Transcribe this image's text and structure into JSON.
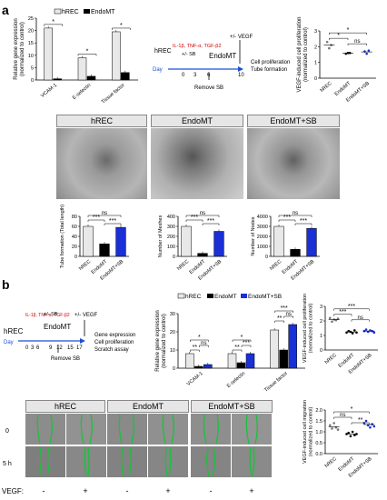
{
  "panel_a": {
    "label": "a",
    "legend": [
      "hREC",
      "EndoMT"
    ],
    "timeline": {
      "cytokines": "IL-1β, TNF-α, TGF-β2",
      "start": "hREC",
      "sb": "+/- SB",
      "endpoint": "EndoMT",
      "vegf": "+/- VEGF",
      "day_label": "Day",
      "days": [
        "0",
        "3",
        "6",
        "10"
      ],
      "remove": "Remove SB",
      "outcomes": [
        "Cell proliferation",
        "Tube formation"
      ]
    },
    "photo_headers": [
      "hREC",
      "EndoMT",
      "EndoMT+SB"
    ]
  },
  "panel_b": {
    "label": "b",
    "legend": [
      "hREC",
      "EndoMT",
      "EndoMT+SB"
    ],
    "timeline": {
      "cytokines": "IL-1β, TNF-α, TGF-β2",
      "start": "hREC",
      "sb": "+/- SB",
      "endpoint": "EndoMT",
      "vegf": "+/- VEGF",
      "day_label": "Day",
      "days": [
        "0",
        "3",
        "6",
        "9",
        "12",
        "15",
        "17"
      ],
      "remove": "Remove SB",
      "outcomes": [
        "Gene expression",
        "Cell proliferation",
        "Scratch assay"
      ]
    },
    "photo_headers": [
      "hREC",
      "EndoMT",
      "EndoMT+SB"
    ],
    "row_labels": [
      "0",
      "5 h"
    ],
    "vegf_row": {
      "label": "VEGF:",
      "marks": [
        "-",
        "+",
        "-",
        "+",
        "-",
        "+"
      ]
    }
  },
  "chart_data": [
    {
      "type": "bar",
      "id": "a_gene",
      "ylabel": "Relative gene expression (normalized to control)",
      "categories": [
        "VCAM-1",
        "E-selectin",
        "Tissue factor"
      ],
      "series": [
        {
          "name": "hREC",
          "values": [
            21,
            9,
            19.5
          ]
        },
        {
          "name": "EndoMT",
          "values": [
            0.5,
            1.5,
            3
          ]
        }
      ],
      "ylim": [
        0,
        25
      ],
      "ticks": [
        "0",
        "5",
        "10",
        "15",
        "20",
        "25"
      ],
      "annotations": [
        "*",
        "*",
        "*"
      ]
    },
    {
      "type": "scatter",
      "id": "a_prolif",
      "ylabel": "VEGF-induced cell proliferation (normalized to control)",
      "categories": [
        "hREC",
        "EndoMT",
        "EndoMT+SB"
      ],
      "values": [
        [
          2.3,
          1.9,
          2.1
        ],
        [
          1.55,
          1.6,
          1.6
        ],
        [
          1.7,
          1.55,
          1.75
        ]
      ],
      "ylim": [
        0,
        3
      ],
      "ticks": [
        "0",
        "1",
        "2",
        "3"
      ],
      "annotations": [
        "*",
        "*",
        "ns"
      ]
    },
    {
      "type": "bar",
      "id": "a_tube",
      "ylabel": "Tube formation (Total length)",
      "categories": [
        "hREC",
        "EndoMT",
        "EndoMT+SB"
      ],
      "values": [
        60,
        25,
        58
      ],
      "ylim": [
        0,
        80
      ],
      "ticks": [
        "0",
        "20",
        "40",
        "60",
        "80"
      ],
      "annotations": [
        "ns",
        "***",
        "***"
      ]
    },
    {
      "type": "bar",
      "id": "a_meshes",
      "ylabel": "Number of Meshes",
      "categories": [
        "hREC",
        "EndoMT",
        "EndoMT+SB"
      ],
      "values": [
        300,
        30,
        250
      ],
      "ylim": [
        0,
        400
      ],
      "ticks": [
        "0",
        "100",
        "200",
        "300",
        "400"
      ],
      "annotations": [
        "ns",
        "***",
        "***"
      ]
    },
    {
      "type": "bar",
      "id": "a_nodes",
      "ylabel": "Number of Nodes",
      "categories": [
        "hREC",
        "EndoMT",
        "EndoMT+SB"
      ],
      "values": [
        3000,
        700,
        2800
      ],
      "ylim": [
        0,
        4000
      ],
      "ticks": [
        "0",
        "1000",
        "2000",
        "3000",
        "4000"
      ],
      "annotations": [
        "ns",
        "***",
        "***"
      ]
    },
    {
      "type": "bar",
      "id": "b_gene",
      "ylabel": "Relative gene expression (normalized to control)",
      "categories": [
        "VCAM-1",
        "E-selectin",
        "Tissue factor"
      ],
      "series": [
        {
          "name": "hREC",
          "values": [
            8,
            8,
            21
          ]
        },
        {
          "name": "EndoMT",
          "values": [
            1,
            3,
            10
          ]
        },
        {
          "name": "EndoMT+SB",
          "values": [
            2,
            8,
            24
          ]
        }
      ],
      "ylim": [
        0,
        30
      ],
      "ticks": [
        "0",
        "10",
        "20",
        "30"
      ],
      "annotations": [
        "**",
        "ns",
        "*",
        "**",
        "***",
        "*",
        "**",
        "ns",
        "***"
      ]
    },
    {
      "type": "scatter",
      "id": "b_prolif",
      "ylabel": "VEGF-induced cell proliferation (normalized to control)",
      "categories": [
        "hREC",
        "EndoMT",
        "EndoMT+SB"
      ],
      "values": [
        [
          2.2,
          1.95,
          2.1,
          2.05,
          2.15
        ],
        [
          1.2,
          1.3,
          1.25,
          1.15,
          1.35,
          1.2
        ],
        [
          1.3,
          1.4,
          1.25,
          1.35,
          1.3,
          1.2
        ]
      ],
      "ylim": [
        0,
        3
      ],
      "ticks": [
        "0",
        "1",
        "2",
        "3"
      ],
      "annotations": [
        "***",
        "***",
        "ns"
      ]
    },
    {
      "type": "scatter",
      "id": "b_migr",
      "ylabel": "VEGF-induced cell migration (normalized to control)",
      "categories": [
        "hREC",
        "EndoMT",
        "EndoMT+SB"
      ],
      "values": [
        [
          1.3,
          1.15,
          1.4,
          1.2,
          1.1
        ],
        [
          0.9,
          0.95,
          0.8,
          1.0,
          0.85,
          0.9
        ],
        [
          1.4,
          1.5,
          1.3,
          1.2,
          1.35,
          1.25
        ]
      ],
      "ylim": [
        0,
        2.0
      ],
      "ticks": [
        "0.0",
        "0.5",
        "1.0",
        "1.5",
        "2.0"
      ],
      "annotations": [
        "ns",
        "*",
        "**"
      ]
    }
  ]
}
